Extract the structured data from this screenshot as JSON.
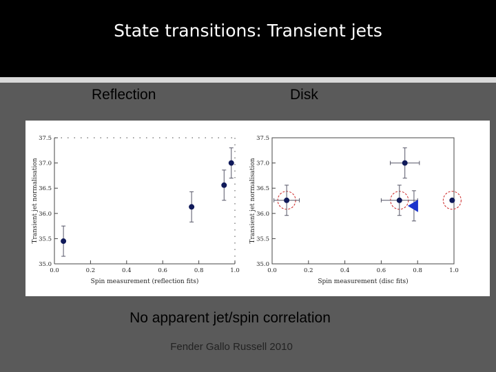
{
  "slide": {
    "title": "State transitions: Transient jets",
    "panel_left_label": "Reflection",
    "panel_right_label": "Disk",
    "caption": "No apparent jet/spin correlation",
    "citation": "Fender Gallo Russell 2010"
  },
  "colors": {
    "marker": "#101a5a",
    "circle": "#cc2222",
    "triangle": "#1a33cc",
    "error_bar": "#555566"
  },
  "chart_data": [
    {
      "type": "scatter",
      "xlabel": "Spin measurement (reflection fits)",
      "ylabel": "Transient jet normalisation",
      "xlim": [
        0.0,
        1.0
      ],
      "ylim": [
        35.0,
        37.5
      ],
      "xticks": [
        "0.0",
        "0.2",
        "0.4",
        "0.6",
        "0.8",
        "1.0"
      ],
      "yticks": [
        "35.0",
        "35.5",
        "36.0",
        "36.5",
        "37.0",
        "37.5"
      ],
      "points": [
        {
          "x": 0.05,
          "y": 35.45,
          "yerr": 0.3
        },
        {
          "x": 0.76,
          "y": 36.13,
          "yerr": 0.3
        },
        {
          "x": 0.94,
          "y": 36.56,
          "yerr": 0.3
        },
        {
          "x": 0.98,
          "y": 37.0,
          "yerr": 0.3
        }
      ]
    },
    {
      "type": "scatter",
      "xlabel": "Spin measurement (disc fits)",
      "ylabel": "Transient jet normalisation",
      "xlim": [
        0.0,
        1.0
      ],
      "ylim": [
        35.0,
        37.5
      ],
      "xticks": [
        "0.0",
        "0.2",
        "0.4",
        "0.6",
        "0.8",
        "1.0"
      ],
      "yticks": [
        "35.0",
        "35.5",
        "36.0",
        "36.5",
        "37.0",
        "37.5"
      ],
      "points": [
        {
          "x": 0.08,
          "y": 36.26,
          "xerr": 0.07,
          "yerr": 0.3,
          "circled": true
        },
        {
          "x": 0.7,
          "y": 36.26,
          "xerr": 0.1,
          "yerr": 0.3,
          "circled": true
        },
        {
          "x": 0.73,
          "y": 37.0,
          "xerr": 0.08,
          "yerr": 0.3
        },
        {
          "x": 0.99,
          "y": 36.26,
          "circled": true
        }
      ],
      "triangles": [
        {
          "x": 0.78,
          "y": 36.15,
          "yerr": 0.3
        }
      ]
    }
  ]
}
